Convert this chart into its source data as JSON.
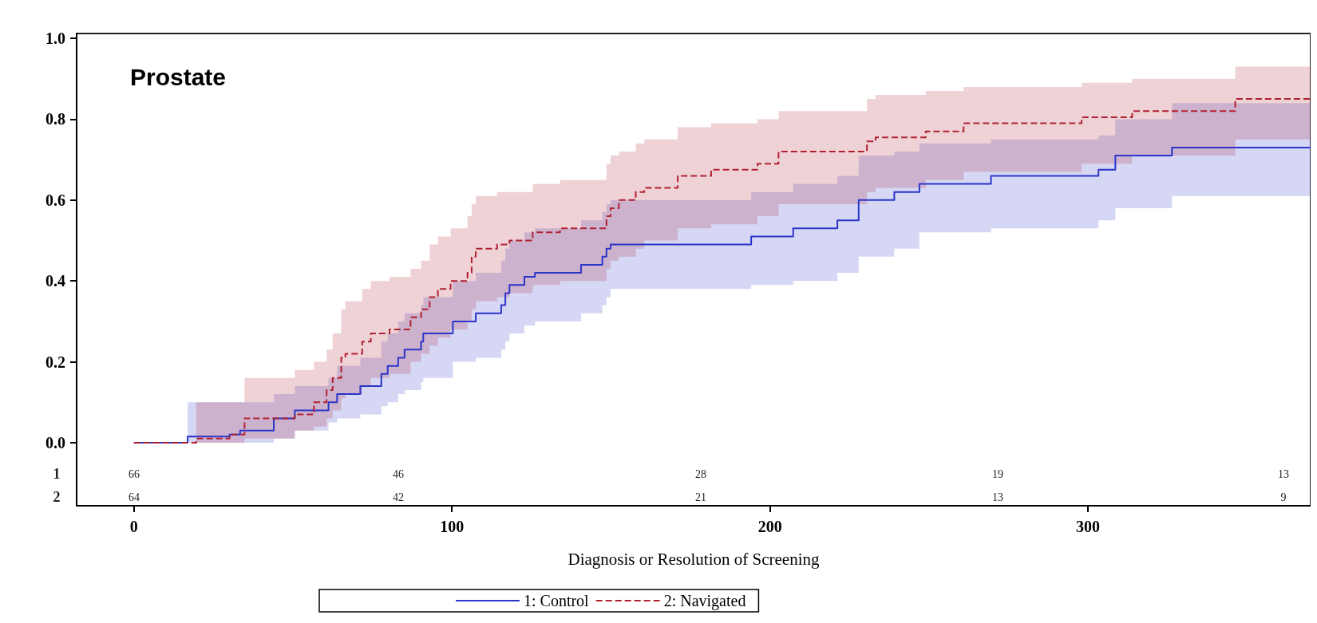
{
  "chart_data": {
    "type": "step",
    "title": "Prostate",
    "xlabel": "Diagnosis or Resolution of Screening",
    "xlim": [
      -18,
      370
    ],
    "ylim": [
      -0.156,
      1.012
    ],
    "xticks": [
      0,
      100,
      200,
      300
    ],
    "yticks": [
      {
        "value": 0,
        "label": "0.0"
      },
      {
        "value": 0.2,
        "label": "0.2"
      },
      {
        "value": 0.4,
        "label": "0.4"
      },
      {
        "value": 0.6,
        "label": "0.6"
      },
      {
        "value": 0.8,
        "label": "0.8"
      },
      {
        "value": 1,
        "label": "1.0"
      }
    ],
    "grid": false,
    "legend": "bottom",
    "marker": "none",
    "series": [
      {
        "name": "1: Control",
        "color": "#2b35c8",
        "line_style": "solid",
        "x": [
          0,
          16.9,
          30.1,
          33.4,
          44.0,
          50.6,
          61.2,
          63.9,
          71.2,
          77.8,
          79.8,
          83.1,
          85.1,
          90.3,
          91.0,
          100.3,
          107.5,
          115.5,
          116.8,
          118.1,
          122.8,
          126.1,
          140.6,
          147.3,
          148.6,
          149.9,
          194.1,
          207.3,
          221.2,
          227.9,
          239.1,
          247.0,
          269.5,
          303.3,
          308.6,
          326.4,
          370
        ],
        "values": [
          0,
          0.015,
          0.02,
          0.03,
          0.06,
          0.08,
          0.1,
          0.12,
          0.14,
          0.17,
          0.19,
          0.21,
          0.23,
          0.25,
          0.27,
          0.3,
          0.32,
          0.34,
          0.37,
          0.39,
          0.41,
          0.42,
          0.44,
          0.46,
          0.48,
          0.49,
          0.51,
          0.53,
          0.55,
          0.6,
          0.62,
          0.64,
          0.66,
          0.675,
          0.71,
          0.73,
          0.73
        ],
        "lower": [
          0,
          0,
          0,
          0,
          0.01,
          0.03,
          0.05,
          0.06,
          0.07,
          0.09,
          0.1,
          0.12,
          0.13,
          0.15,
          0.16,
          0.2,
          0.21,
          0.23,
          0.25,
          0.27,
          0.29,
          0.3,
          0.32,
          0.34,
          0.36,
          0.38,
          0.39,
          0.4,
          0.42,
          0.46,
          0.48,
          0.52,
          0.53,
          0.55,
          0.58,
          0.61,
          0.61
        ],
        "upper": [
          0,
          0.1,
          0.1,
          0.1,
          0.12,
          0.14,
          0.16,
          0.19,
          0.21,
          0.25,
          0.27,
          0.3,
          0.32,
          0.34,
          0.36,
          0.4,
          0.42,
          0.45,
          0.48,
          0.5,
          0.52,
          0.53,
          0.55,
          0.57,
          0.59,
          0.6,
          0.62,
          0.64,
          0.66,
          0.71,
          0.72,
          0.74,
          0.75,
          0.76,
          0.8,
          0.84,
          0.84
        ]
      },
      {
        "name": "2: Navigated",
        "color": "#b02030",
        "line_style": "dashed",
        "x": [
          0,
          19.6,
          30.1,
          34.8,
          50.6,
          56.6,
          60.6,
          62.5,
          65.2,
          66.5,
          71.8,
          74.5,
          80.4,
          87.0,
          90.3,
          93.0,
          95.6,
          99.6,
          104.9,
          106.2,
          107.5,
          114.2,
          118.1,
          125.4,
          134.0,
          148.6,
          149.9,
          152.5,
          157.8,
          160.5,
          171.0,
          181.5,
          196.1,
          202.7,
          230.5,
          233.2,
          249.0,
          260.9,
          298.0,
          313.9,
          346.3,
          370
        ],
        "values": [
          0,
          0.01,
          0.02,
          0.06,
          0.07,
          0.1,
          0.13,
          0.16,
          0.21,
          0.22,
          0.25,
          0.27,
          0.28,
          0.31,
          0.33,
          0.36,
          0.38,
          0.4,
          0.42,
          0.46,
          0.48,
          0.49,
          0.5,
          0.52,
          0.53,
          0.56,
          0.58,
          0.6,
          0.62,
          0.63,
          0.66,
          0.675,
          0.69,
          0.72,
          0.745,
          0.755,
          0.77,
          0.79,
          0.805,
          0.82,
          0.85,
          0.85
        ],
        "lower": [
          0,
          0,
          0,
          0.01,
          0.03,
          0.04,
          0.06,
          0.08,
          0.11,
          0.12,
          0.14,
          0.16,
          0.17,
          0.2,
          0.22,
          0.24,
          0.26,
          0.28,
          0.3,
          0.33,
          0.35,
          0.36,
          0.37,
          0.39,
          0.4,
          0.43,
          0.45,
          0.46,
          0.48,
          0.5,
          0.53,
          0.54,
          0.56,
          0.59,
          0.62,
          0.63,
          0.65,
          0.67,
          0.69,
          0.71,
          0.75,
          0.75
        ],
        "upper": [
          0,
          0.1,
          0.1,
          0.16,
          0.18,
          0.2,
          0.23,
          0.27,
          0.33,
          0.35,
          0.38,
          0.4,
          0.41,
          0.43,
          0.45,
          0.49,
          0.51,
          0.53,
          0.56,
          0.59,
          0.61,
          0.62,
          0.62,
          0.64,
          0.65,
          0.69,
          0.71,
          0.72,
          0.74,
          0.75,
          0.78,
          0.79,
          0.8,
          0.82,
          0.85,
          0.86,
          0.87,
          0.88,
          0.89,
          0.9,
          0.93,
          0.93
        ]
      }
    ],
    "annotations": [
      "1",
      "66",
      "46",
      "28",
      "19",
      "13",
      "2",
      "64",
      "42",
      "21",
      "13",
      "9"
    ]
  }
}
